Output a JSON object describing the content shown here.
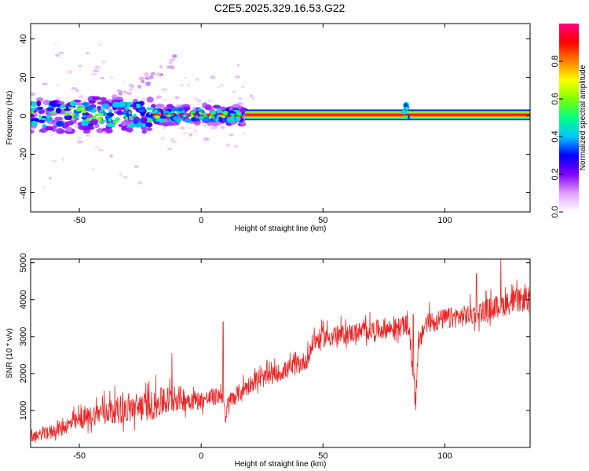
{
  "title": "C2E5.2025.329.16.53.G22",
  "chart_data": [
    {
      "type": "heatmap",
      "xlabel": "Height of straight line (km)",
      "ylabel": "Frequency (Hz)",
      "xlim": [
        -70,
        135
      ],
      "ylim": [
        -50,
        48
      ],
      "xticks": [
        -50,
        0,
        50,
        100
      ],
      "yticks": [
        -40,
        -20,
        0,
        20,
        40
      ],
      "colorbar": {
        "label": "Normalized spectral amplitude",
        "range": [
          0,
          1
        ],
        "ticks": [
          "0.0",
          "0.2",
          "0.4",
          "0.6",
          "0.8"
        ],
        "colors": [
          "#ffffff",
          "#e0a0ff",
          "#8000ff",
          "#0000ff",
          "#00c8ff",
          "#00ff80",
          "#80ff00",
          "#ffff00",
          "#ff8000",
          "#ff0000",
          "#ff0080"
        ]
      },
      "features": {
        "carrier_line_frequency_hz": 0.5,
        "stable_from_km": 18,
        "scattered_region_km": [
          -70,
          18
        ],
        "disturbance_near_km": 84
      }
    },
    {
      "type": "line",
      "xlabel": "Height of straight line (km)",
      "ylabel": "SNR (10 * v/v)",
      "xlim": [
        -70,
        135
      ],
      "ylim": [
        0,
        5100
      ],
      "xticks": [
        -50,
        0,
        50,
        100
      ],
      "yticks": [
        1000,
        2000,
        3000,
        4000,
        5000
      ],
      "series": [
        {
          "color": "#ee2222",
          "x": [
            -70,
            -60,
            -50,
            -40,
            -30,
            -20,
            -10,
            0,
            9,
            10,
            11,
            20,
            30,
            40,
            44,
            46,
            50,
            60,
            70,
            80,
            85,
            87,
            88,
            89,
            92,
            100,
            110,
            120,
            130,
            135
          ],
          "y": [
            250,
            450,
            700,
            950,
            1000,
            1100,
            1300,
            1250,
            1400,
            600,
            1200,
            1700,
            1950,
            2200,
            2400,
            2850,
            2950,
            3050,
            3150,
            3200,
            3300,
            2000,
            1200,
            2600,
            3350,
            3450,
            3550,
            3750,
            3950,
            4000
          ]
        }
      ],
      "noise_envelope": [
        {
          "x": -70,
          "amp": 200
        },
        {
          "x": -30,
          "amp": 650
        },
        {
          "x": -15,
          "amp": 700
        },
        {
          "x": 0,
          "amp": 400
        },
        {
          "x": 30,
          "amp": 400
        },
        {
          "x": 45,
          "amp": 450
        },
        {
          "x": 80,
          "amp": 450
        },
        {
          "x": 110,
          "amp": 500
        },
        {
          "x": 135,
          "amp": 550
        }
      ],
      "spikes": [
        {
          "x": -12,
          "y": 2550
        },
        {
          "x": 9,
          "y": 3400
        },
        {
          "x": 87,
          "y": 3600
        },
        {
          "x": 113,
          "y": 4700
        },
        {
          "x": 123,
          "y": 5100
        }
      ]
    }
  ]
}
